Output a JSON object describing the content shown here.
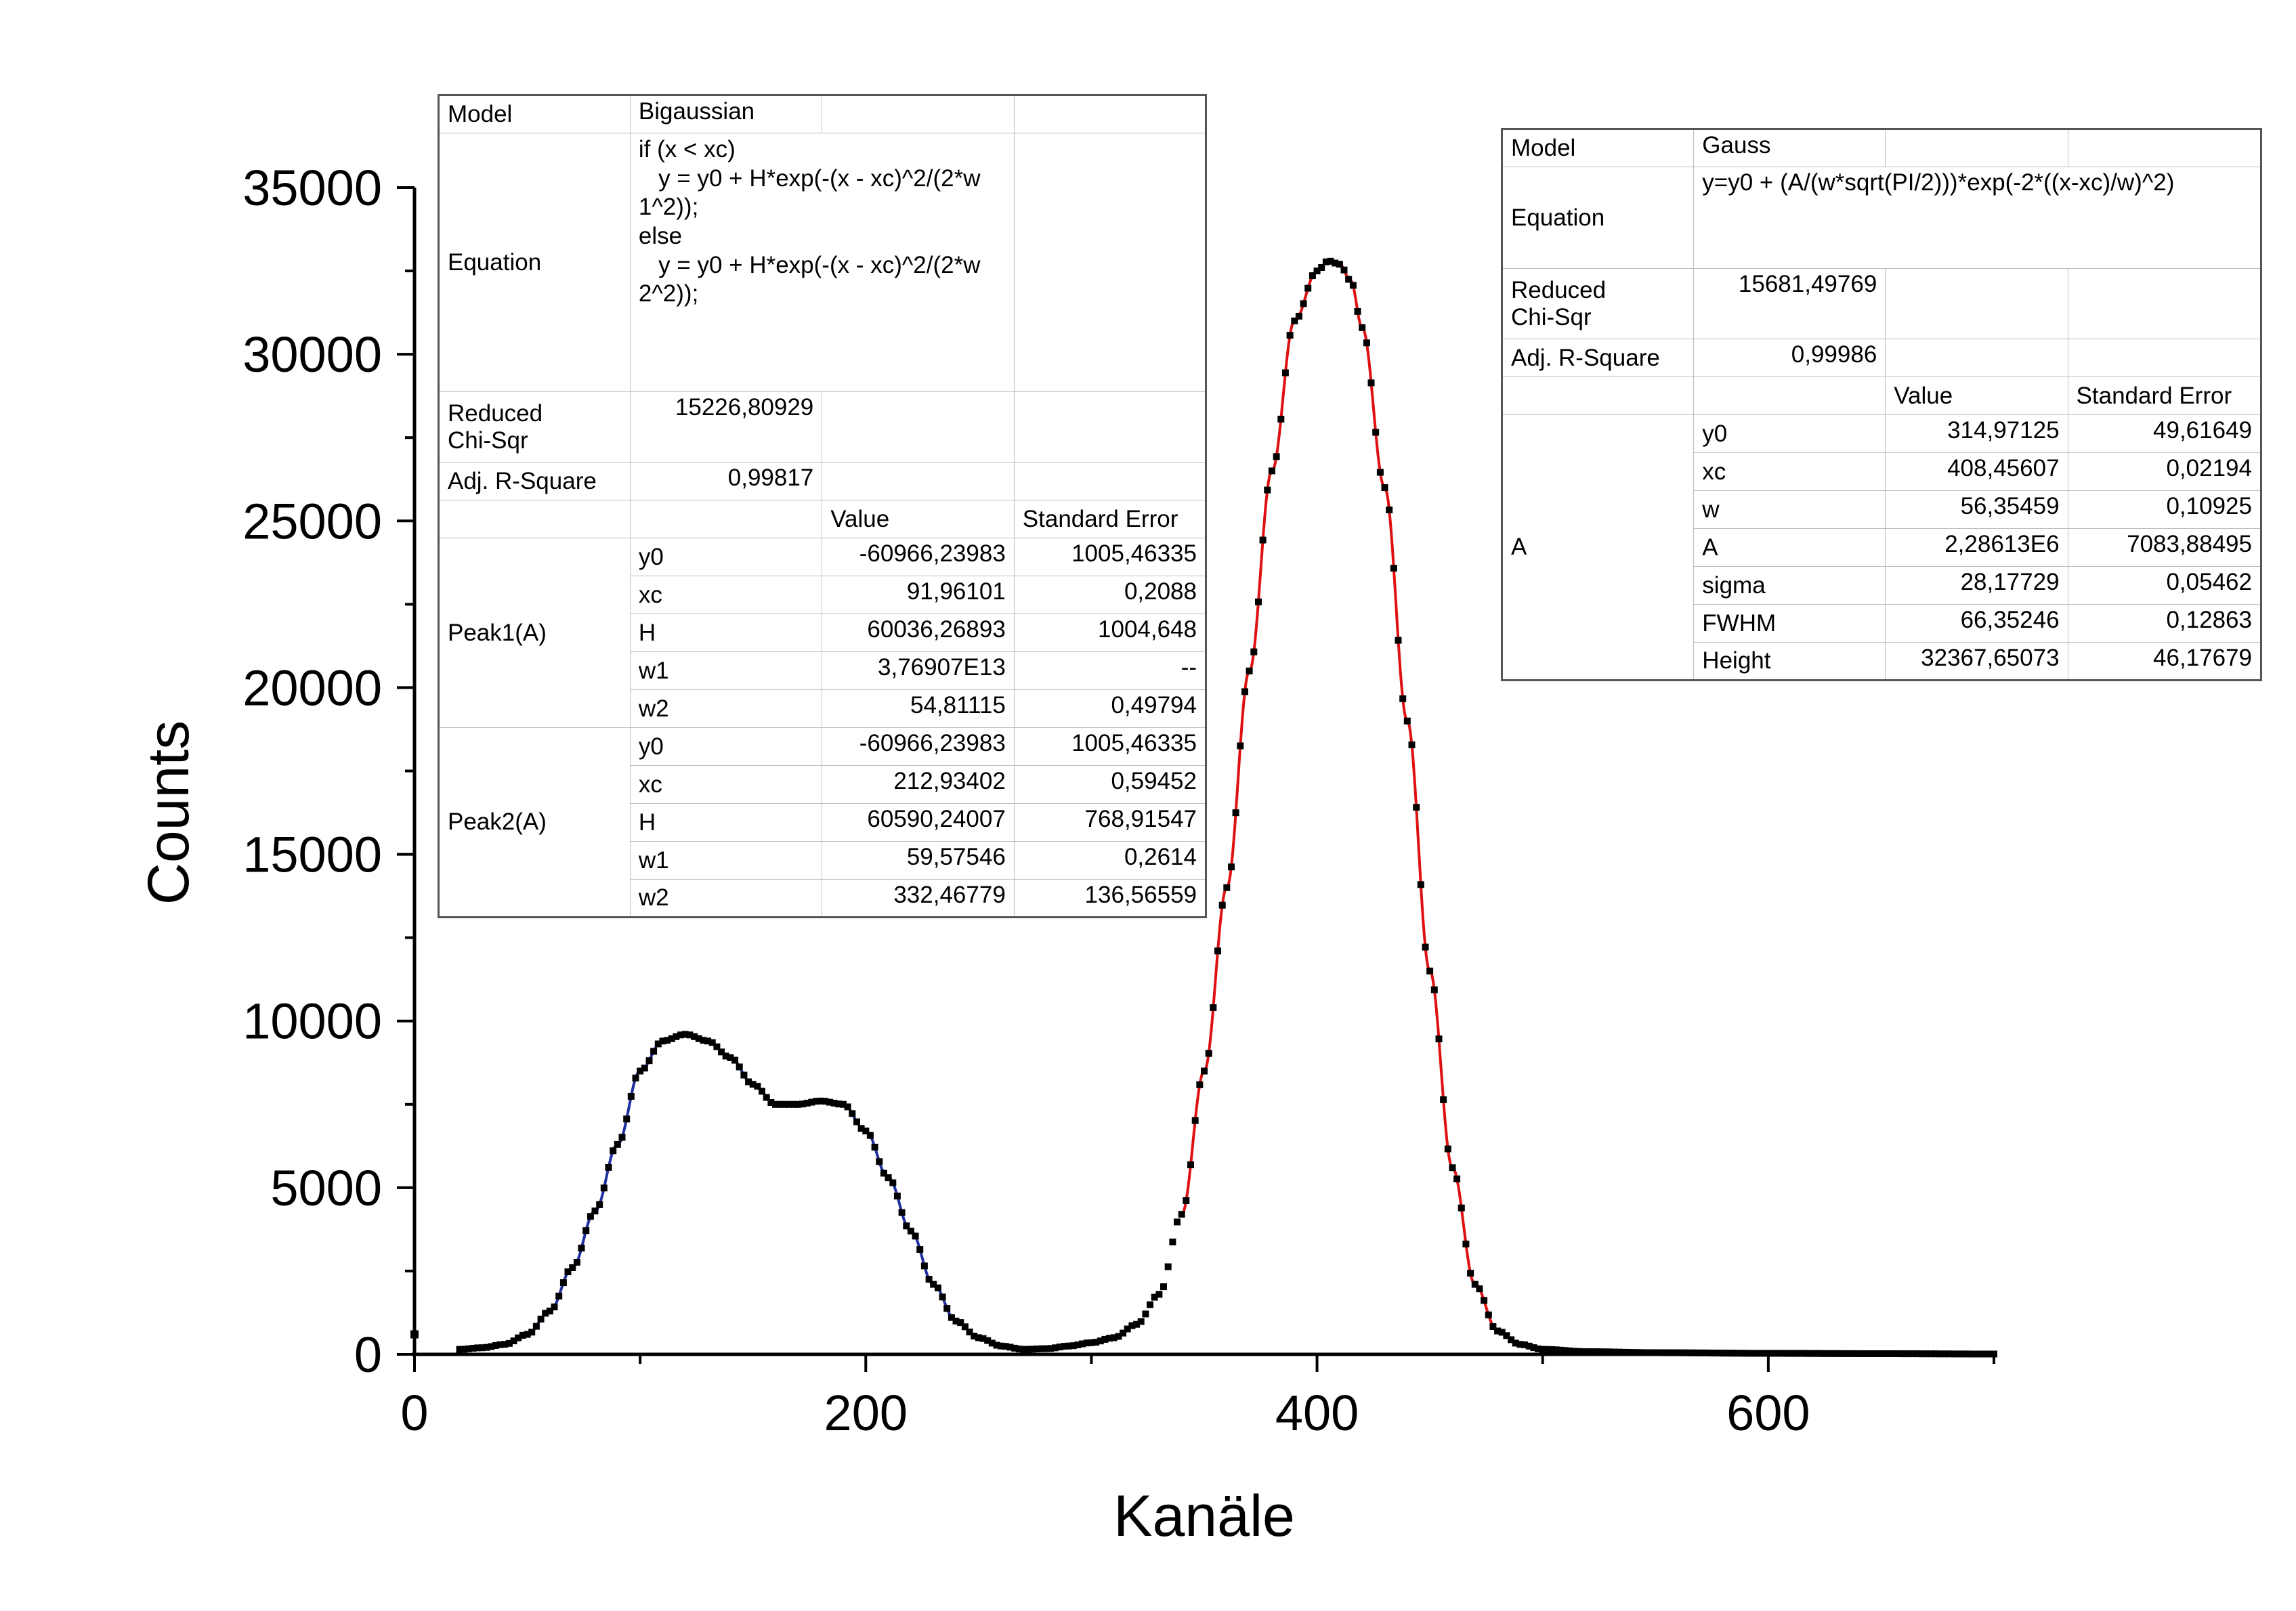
{
  "chart_data": {
    "type": "scatter",
    "xlabel": "Kanäle",
    "ylabel": "Counts",
    "xlim": [
      0,
      700
    ],
    "ylim": [
      0,
      35000
    ],
    "x_ticks": [
      "0",
      "200",
      "400",
      "600"
    ],
    "y_ticks": [
      "0",
      "5000",
      "10000",
      "15000",
      "20000",
      "25000",
      "30000",
      "35000"
    ],
    "grid": false,
    "legend": "none",
    "series": [
      {
        "kind": "data",
        "color": "#000000",
        "marker": "square",
        "x": [
          0,
          20,
          30,
          40,
          50,
          60,
          70,
          80,
          90,
          100,
          110,
          120,
          130,
          140,
          150,
          160,
          170,
          180,
          190,
          200,
          210,
          220,
          230,
          240,
          250,
          260,
          270,
          280,
          290,
          300,
          310,
          320,
          330,
          340,
          350,
          360,
          370,
          380,
          390,
          400,
          405,
          410,
          415,
          420,
          430,
          440,
          450,
          460,
          470,
          480,
          490,
          500,
          520,
          550,
          600,
          650,
          700
        ],
        "y": [
          600,
          150,
          200,
          300,
          600,
          1300,
          2600,
          4300,
          6300,
          8500,
          9400,
          9600,
          9400,
          8900,
          8100,
          7500,
          7500,
          7600,
          7500,
          6700,
          5300,
          3700,
          2100,
          1000,
          500,
          250,
          150,
          170,
          250,
          350,
          500,
          900,
          1800,
          4200,
          8500,
          14000,
          20500,
          26500,
          31000,
          32500,
          32800,
          32700,
          32200,
          30800,
          26000,
          19000,
          11500,
          5600,
          2100,
          700,
          300,
          150,
          80,
          50,
          30,
          20,
          10
        ]
      },
      {
        "kind": "fit",
        "name": "Bigaussian",
        "color": "#1f2fa0",
        "x_range": [
          35,
          265
        ]
      },
      {
        "kind": "fit",
        "name": "Gauss",
        "color": "#e01010",
        "x_range": [
          340,
          485
        ]
      }
    ]
  },
  "table_left": {
    "model_label": "Model",
    "model_value": "Bigaussian",
    "equation_label": "Equation",
    "equation_value": "if (x < xc)\n   y = y0 + H*exp(-(x - xc)^2/(2*w\n1^2));\nelse\n   y = y0 + H*exp(-(x - xc)^2/(2*w\n2^2));",
    "chi_label": "Reduced\nChi-Sqr",
    "chi_value": "15226,80929",
    "r2_label": "Adj. R-Square",
    "r2_value": "0,99817",
    "value_header": "Value",
    "error_header": "Standard Error",
    "peak1_label": "Peak1(A)",
    "peak2_label": "Peak2(A)",
    "peak1_rows": [
      {
        "param": "y0",
        "value": "-60966,23983",
        "error": "1005,46335"
      },
      {
        "param": "xc",
        "value": "91,96101",
        "error": "0,2088"
      },
      {
        "param": "H",
        "value": "60036,26893",
        "error": "1004,648"
      },
      {
        "param": "w1",
        "value": "3,76907E13",
        "error": "--"
      },
      {
        "param": "w2",
        "value": "54,81115",
        "error": "0,49794"
      }
    ],
    "peak2_rows": [
      {
        "param": "y0",
        "value": "-60966,23983",
        "error": "1005,46335"
      },
      {
        "param": "xc",
        "value": "212,93402",
        "error": "0,59452"
      },
      {
        "param": "H",
        "value": "60590,24007",
        "error": "768,91547"
      },
      {
        "param": "w1",
        "value": "59,57546",
        "error": "0,2614"
      },
      {
        "param": "w2",
        "value": "332,46779",
        "error": "136,56559"
      }
    ]
  },
  "table_right": {
    "model_label": "Model",
    "model_value": "Gauss",
    "equation_label": "Equation",
    "equation_value": "y=y0 + (A/(w*sqrt(PI/2)))*exp(-2*((x-xc)/w)^2)",
    "chi_label": "Reduced\nChi-Sqr",
    "chi_value": "15681,49769",
    "r2_label": "Adj. R-Square",
    "r2_value": "0,99986",
    "value_header": "Value",
    "error_header": "Standard Error",
    "group_label": "A",
    "rows": [
      {
        "param": "y0",
        "value": "314,97125",
        "error": "49,61649"
      },
      {
        "param": "xc",
        "value": "408,45607",
        "error": "0,02194"
      },
      {
        "param": "w",
        "value": "56,35459",
        "error": "0,10925"
      },
      {
        "param": "A",
        "value": "2,28613E6",
        "error": "7083,88495"
      },
      {
        "param": "sigma",
        "value": "28,17729",
        "error": "0,05462"
      },
      {
        "param": "FWHM",
        "value": "66,35246",
        "error": "0,12863"
      },
      {
        "param": "Height",
        "value": "32367,65073",
        "error": "46,17679"
      }
    ]
  }
}
